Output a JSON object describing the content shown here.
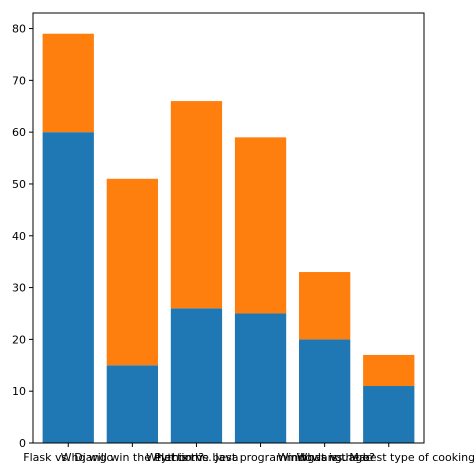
{
  "chart_data": {
    "type": "bar",
    "stacked": true,
    "categories": [
      "Flask vs. Django",
      "Who will win the election?",
      "Python vs. Java",
      "What is the best programming language?",
      "Windows vs. Mac",
      "What is the best type of cooking?"
    ],
    "series": [
      {
        "values": [
          60,
          15,
          26,
          25,
          20,
          11
        ],
        "color": "#1f77b4"
      },
      {
        "values": [
          19,
          36,
          40,
          34,
          13,
          6
        ],
        "color": "#ff7f0e"
      }
    ],
    "title": "",
    "xlabel": "",
    "ylabel": "",
    "ylim": [
      0,
      83
    ],
    "yticks": [
      0,
      10,
      20,
      30,
      40,
      50,
      60,
      70,
      80
    ],
    "grid": false,
    "legend": "none"
  }
}
